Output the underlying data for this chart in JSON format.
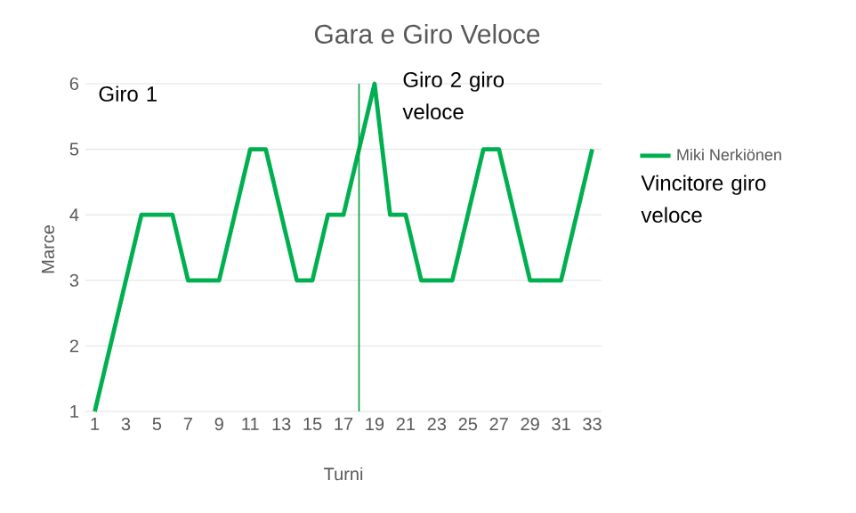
{
  "chart_data": {
    "type": "line",
    "title": "Gara e Giro Veloce",
    "xlabel": "Turni",
    "ylabel": "Marce",
    "x": [
      1,
      2,
      3,
      4,
      5,
      6,
      7,
      8,
      9,
      10,
      11,
      12,
      13,
      14,
      15,
      16,
      17,
      18,
      19,
      20,
      21,
      22,
      23,
      24,
      25,
      26,
      27,
      28,
      29,
      30,
      31,
      32,
      33
    ],
    "series": [
      {
        "name": "Miki Nerkiönen",
        "color": "#00b050",
        "values": [
          1,
          2,
          3,
          4,
          4,
          4,
          3,
          3,
          3,
          4,
          5,
          5,
          4,
          3,
          3,
          4,
          4,
          5,
          6,
          4,
          4,
          3,
          3,
          3,
          4,
          5,
          5,
          4,
          3,
          3,
          3,
          4,
          5
        ]
      }
    ],
    "xlim": [
      0.4,
      33.6
    ],
    "xticks": [
      1,
      3,
      5,
      7,
      9,
      11,
      13,
      15,
      17,
      19,
      21,
      23,
      25,
      27,
      29,
      31,
      33
    ],
    "ylim": [
      1,
      6
    ],
    "yticks": [
      1,
      2,
      3,
      4,
      5,
      6
    ],
    "grid": "y",
    "legend": "right",
    "marker": "none",
    "line_style": "solid",
    "ref_lines": [
      {
        "axis": "x",
        "value": 18,
        "color": "#00a040"
      }
    ],
    "annotations": [
      "Giro 1",
      "Giro 2 giro veloce",
      "Vincitore giro veloce"
    ]
  }
}
